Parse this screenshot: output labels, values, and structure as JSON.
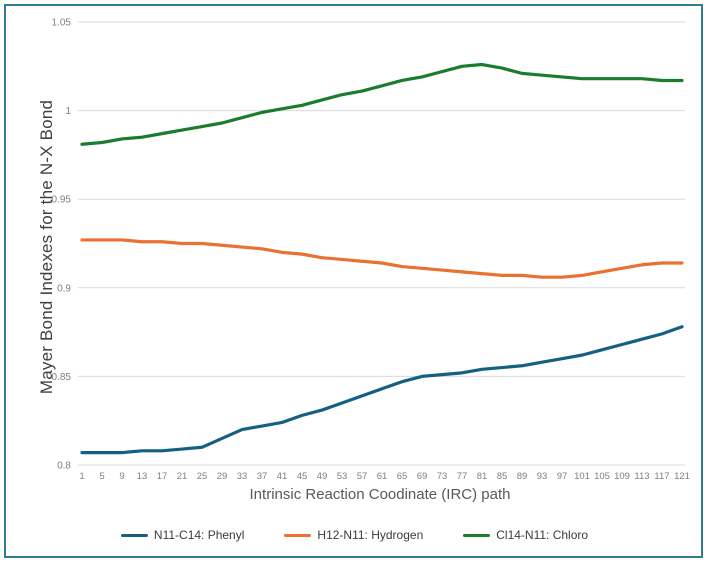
{
  "frame": {
    "border_color": "#2E7E8C",
    "background": "#FFFFFF"
  },
  "chart_data": {
    "type": "line",
    "title": "",
    "xlabel": "Intrinsic Reaction Coodinate (IRC) path",
    "ylabel": "Mayer Bond Indexes for the N-X Bond",
    "xlim": [
      1,
      121
    ],
    "ylim": [
      0.8,
      1.05
    ],
    "grid": "horizontal",
    "legend_position": "bottom",
    "x": [
      1,
      5,
      9,
      13,
      17,
      21,
      25,
      29,
      33,
      37,
      41,
      45,
      49,
      53,
      57,
      61,
      65,
      69,
      73,
      77,
      81,
      85,
      89,
      93,
      97,
      101,
      105,
      109,
      113,
      117,
      121
    ],
    "x_tick_labels": [
      "1",
      "5",
      "9",
      "13",
      "17",
      "21",
      "25",
      "29",
      "33",
      "37",
      "41",
      "45",
      "49",
      "53",
      "57",
      "61",
      "65",
      "69",
      "73",
      "77",
      "81",
      "85",
      "89",
      "93",
      "97",
      "101",
      "105",
      "109",
      "113",
      "117",
      "121"
    ],
    "y_ticks": [
      0.8,
      0.85,
      0.9,
      0.95,
      1,
      1.05
    ],
    "y_tick_labels": [
      "0.8",
      "0.85",
      "0.9",
      "0.95",
      "1",
      "1.05"
    ],
    "axis_tick_color": "#7F7F7F",
    "gridline_color": "#D9D9D9",
    "series": [
      {
        "name": "N11-C14: Phenyl",
        "color": "#156082",
        "values": [
          0.807,
          0.807,
          0.807,
          0.808,
          0.808,
          0.809,
          0.81,
          0.815,
          0.82,
          0.822,
          0.824,
          0.828,
          0.831,
          0.835,
          0.839,
          0.843,
          0.847,
          0.85,
          0.851,
          0.852,
          0.854,
          0.855,
          0.856,
          0.858,
          0.86,
          0.862,
          0.865,
          0.868,
          0.871,
          0.874,
          0.878
        ]
      },
      {
        "name": "H12-N11: Hydrogen",
        "color": "#E97132",
        "values": [
          0.927,
          0.927,
          0.927,
          0.926,
          0.926,
          0.925,
          0.925,
          0.924,
          0.923,
          0.922,
          0.92,
          0.919,
          0.917,
          0.916,
          0.915,
          0.914,
          0.912,
          0.911,
          0.91,
          0.909,
          0.908,
          0.907,
          0.907,
          0.906,
          0.906,
          0.907,
          0.909,
          0.911,
          0.913,
          0.914,
          0.914
        ]
      },
      {
        "name": "Cl14-N11: Chloro",
        "color": "#1A7D2E",
        "values": [
          0.981,
          0.982,
          0.984,
          0.985,
          0.987,
          0.989,
          0.991,
          0.993,
          0.996,
          0.999,
          1.001,
          1.003,
          1.006,
          1.009,
          1.011,
          1.014,
          1.017,
          1.019,
          1.022,
          1.025,
          1.026,
          1.024,
          1.021,
          1.02,
          1.019,
          1.018,
          1.018,
          1.018,
          1.018,
          1.017,
          1.017
        ]
      }
    ]
  }
}
